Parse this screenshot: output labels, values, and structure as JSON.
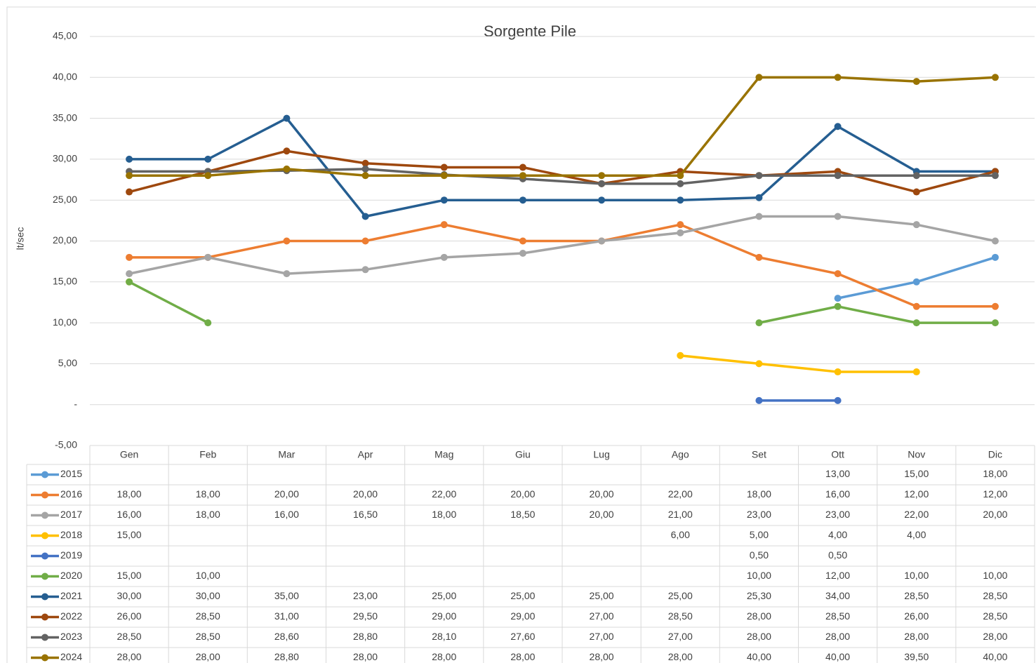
{
  "chart_data": {
    "type": "line",
    "title": "Sorgente Pile",
    "y_label": "lt/sec",
    "categories": [
      "Gen",
      "Feb",
      "Mar",
      "Apr",
      "Mag",
      "Giu",
      "Lug",
      "Ago",
      "Set",
      "Ott",
      "Nov",
      "Dic"
    ],
    "ylim": [
      -5,
      45
    ],
    "yticks": [
      {
        "value": -5,
        "label": "-5,00"
      },
      {
        "value": 0,
        "label": "-"
      },
      {
        "value": 5,
        "label": "5,00"
      },
      {
        "value": 10,
        "label": "10,00"
      },
      {
        "value": 15,
        "label": "15,00"
      },
      {
        "value": 20,
        "label": "20,00"
      },
      {
        "value": 25,
        "label": "25,00"
      },
      {
        "value": 30,
        "label": "30,00"
      },
      {
        "value": 35,
        "label": "35,00"
      },
      {
        "value": 40,
        "label": "40,00"
      },
      {
        "value": 45,
        "label": "45,00"
      }
    ],
    "grid": true,
    "series": [
      {
        "name": "2015",
        "color": "#5B9BD5",
        "values": [
          null,
          null,
          null,
          null,
          null,
          null,
          null,
          null,
          null,
          13,
          15,
          18
        ],
        "value_labels": [
          null,
          null,
          null,
          null,
          null,
          null,
          null,
          null,
          null,
          "13,00",
          "15,00",
          "18,00"
        ]
      },
      {
        "name": "2016",
        "color": "#ED7D31",
        "values": [
          18,
          18,
          20,
          20,
          22,
          20,
          20,
          22,
          18,
          16,
          12,
          12
        ],
        "value_labels": [
          "18,00",
          "18,00",
          "20,00",
          "20,00",
          "22,00",
          "20,00",
          "20,00",
          "22,00",
          "18,00",
          "16,00",
          "12,00",
          "12,00"
        ]
      },
      {
        "name": "2017",
        "color": "#A5A5A5",
        "values": [
          16,
          18,
          16,
          16.5,
          18,
          18.5,
          20,
          21,
          23,
          23,
          22,
          20
        ],
        "value_labels": [
          "16,00",
          "18,00",
          "16,00",
          "16,50",
          "18,00",
          "18,50",
          "20,00",
          "21,00",
          "23,00",
          "23,00",
          "22,00",
          "20,00"
        ]
      },
      {
        "name": "2018",
        "color": "#FFC000",
        "values": [
          15,
          null,
          null,
          null,
          null,
          null,
          null,
          6,
          5,
          4,
          4,
          null
        ],
        "value_labels": [
          "15,00",
          null,
          null,
          null,
          null,
          null,
          null,
          "6,00",
          "5,00",
          "4,00",
          "4,00",
          null
        ]
      },
      {
        "name": "2019",
        "color": "#4472C4",
        "values": [
          null,
          null,
          null,
          null,
          null,
          null,
          null,
          null,
          0.5,
          0.5,
          null,
          null
        ],
        "value_labels": [
          null,
          null,
          null,
          null,
          null,
          null,
          null,
          null,
          "0,50",
          "0,50",
          null,
          null
        ]
      },
      {
        "name": "2020",
        "color": "#70AD47",
        "values": [
          15,
          10,
          null,
          null,
          null,
          null,
          null,
          null,
          10,
          12,
          10,
          10
        ],
        "value_labels": [
          "15,00",
          "10,00",
          null,
          null,
          null,
          null,
          null,
          null,
          "10,00",
          "12,00",
          "10,00",
          "10,00"
        ]
      },
      {
        "name": "2021",
        "color": "#255E91",
        "values": [
          30,
          30,
          35,
          23,
          25,
          25,
          25,
          25,
          25.3,
          34,
          28.5,
          28.5
        ],
        "value_labels": [
          "30,00",
          "30,00",
          "35,00",
          "23,00",
          "25,00",
          "25,00",
          "25,00",
          "25,00",
          "25,30",
          "34,00",
          "28,50",
          "28,50"
        ]
      },
      {
        "name": "2022",
        "color": "#9E480E",
        "values": [
          26,
          28.5,
          31,
          29.5,
          29,
          29,
          27,
          28.5,
          28,
          28.5,
          26,
          28.5
        ],
        "value_labels": [
          "26,00",
          "28,50",
          "31,00",
          "29,50",
          "29,00",
          "29,00",
          "27,00",
          "28,50",
          "28,00",
          "28,50",
          "26,00",
          "28,50"
        ]
      },
      {
        "name": "2023",
        "color": "#636363",
        "values": [
          28.5,
          28.5,
          28.6,
          28.8,
          28.1,
          27.6,
          27,
          27,
          28,
          28,
          28,
          28
        ],
        "value_labels": [
          "28,50",
          "28,50",
          "28,60",
          "28,80",
          "28,10",
          "27,60",
          "27,00",
          "27,00",
          "28,00",
          "28,00",
          "28,00",
          "28,00"
        ]
      },
      {
        "name": "2024",
        "color": "#997300",
        "values": [
          28,
          28,
          28.8,
          28,
          28,
          28,
          28,
          28,
          40,
          40,
          39.5,
          40
        ],
        "value_labels": [
          "28,00",
          "28,00",
          "28,80",
          "28,00",
          "28,00",
          "28,00",
          "28,00",
          "28,00",
          "40,00",
          "40,00",
          "39,50",
          "40,00"
        ]
      }
    ]
  }
}
